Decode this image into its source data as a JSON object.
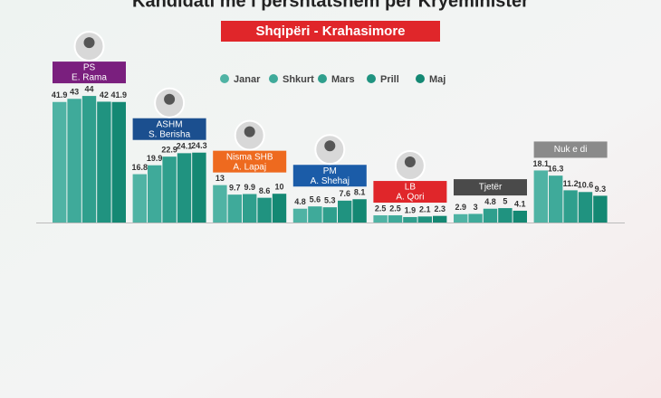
{
  "chart_data": {
    "type": "bar",
    "title": "Kandidati më i përshtatshëm për Kryeministër",
    "subtitle": "Shqipëri - Krahasimore",
    "parties": [
      "PS",
      "ASHM",
      "Nisma SHB",
      "PM",
      "LB",
      "Tjetër",
      "Nuk e di"
    ],
    "leaders": [
      "E. Rama",
      "S. Berisha",
      "A. Lapaj",
      "A. Shehaj",
      "A. Qori",
      null,
      null
    ],
    "label_colors": [
      "#7a1f7e",
      "#1b4f8f",
      "#ee6a1f",
      "#1b5ca8",
      "#e0262a",
      "#4a4a4a",
      "#8a8a8a"
    ],
    "series": [
      {
        "name": "Janar",
        "color": "#4fb3a4",
        "values": [
          41.9,
          16.8,
          13,
          4.8,
          2.5,
          2.9,
          18.1
        ]
      },
      {
        "name": "Shkurt",
        "color": "#3faa9a",
        "values": [
          43,
          19.9,
          9.7,
          5.6,
          2.5,
          3,
          16.3
        ]
      },
      {
        "name": "Mars",
        "color": "#2f9f8d",
        "values": [
          44,
          22.9,
          9.9,
          5.3,
          1.9,
          4.8,
          11.2
        ]
      },
      {
        "name": "Prill",
        "color": "#209380",
        "values": [
          42,
          24.1,
          8.6,
          7.6,
          2.1,
          5,
          10.6
        ]
      },
      {
        "name": "Maj",
        "color": "#148873",
        "values": [
          41.9,
          24.3,
          10,
          8.1,
          2.3,
          4.1,
          9.3
        ]
      }
    ]
  }
}
